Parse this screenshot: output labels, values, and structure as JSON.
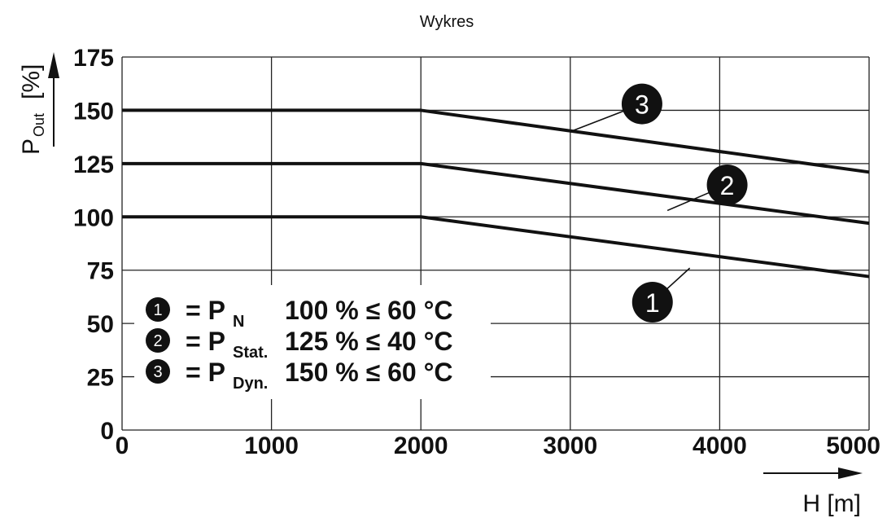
{
  "chart_data": {
    "type": "line",
    "title": "Wykres",
    "xlabel": "H [m]",
    "ylabel_main": "P",
    "ylabel_sub": "Out",
    "ylabel_unit": "[%]",
    "xlim": [
      0,
      5000
    ],
    "ylim": [
      0,
      175
    ],
    "x_ticks": [
      0,
      1000,
      2000,
      3000,
      4000,
      5000
    ],
    "y_ticks": [
      0,
      25,
      50,
      75,
      100,
      125,
      150,
      175
    ],
    "grid": true,
    "series": [
      {
        "name": "1",
        "x": [
          0,
          2000,
          5000
        ],
        "y": [
          100,
          100,
          72
        ]
      },
      {
        "name": "2",
        "x": [
          0,
          2000,
          5000
        ],
        "y": [
          125,
          125,
          97
        ]
      },
      {
        "name": "3",
        "x": [
          0,
          2000,
          5000
        ],
        "y": [
          150,
          150,
          121
        ]
      }
    ],
    "markers": [
      {
        "label": "1",
        "x": 3550,
        "y": 60,
        "leader_to": [
          3800,
          76
        ]
      },
      {
        "label": "2",
        "x": 4050,
        "y": 115,
        "leader_to": [
          3650,
          103
        ]
      },
      {
        "label": "3",
        "x": 3480,
        "y": 153,
        "leader_to": [
          3000,
          140
        ]
      }
    ],
    "legend": {
      "placement": "inside lower-left",
      "items": [
        {
          "num": "1",
          "eq": "= P",
          "sub": "N",
          "text": "100 % ≤ 60 °C"
        },
        {
          "num": "2",
          "eq": "= P",
          "sub": "Stat.",
          "text": "125 % ≤ 40 °C"
        },
        {
          "num": "3",
          "eq": "= P",
          "sub": "Dyn.",
          "text": "150 % ≤ 60 °C"
        }
      ]
    }
  }
}
